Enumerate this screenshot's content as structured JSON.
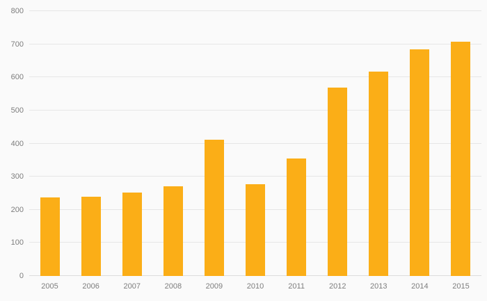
{
  "chart_data": {
    "type": "bar",
    "title": "",
    "xlabel": "",
    "ylabel": "",
    "categories": [
      "2005",
      "2006",
      "2007",
      "2008",
      "2009",
      "2010",
      "2011",
      "2012",
      "2013",
      "2014",
      "2015"
    ],
    "values": [
      237,
      240,
      253,
      271,
      412,
      277,
      355,
      570,
      617,
      684,
      707
    ],
    "ylim": [
      0,
      800
    ],
    "yticks": [
      0,
      100,
      200,
      300,
      400,
      500,
      600,
      700,
      800
    ],
    "grid": "horizontal",
    "legend": "none",
    "bar_color": "#fbae17",
    "background_color": "#fafafa",
    "gridline_color": "#e6e6e6",
    "label_color": "#7d7d7d"
  }
}
